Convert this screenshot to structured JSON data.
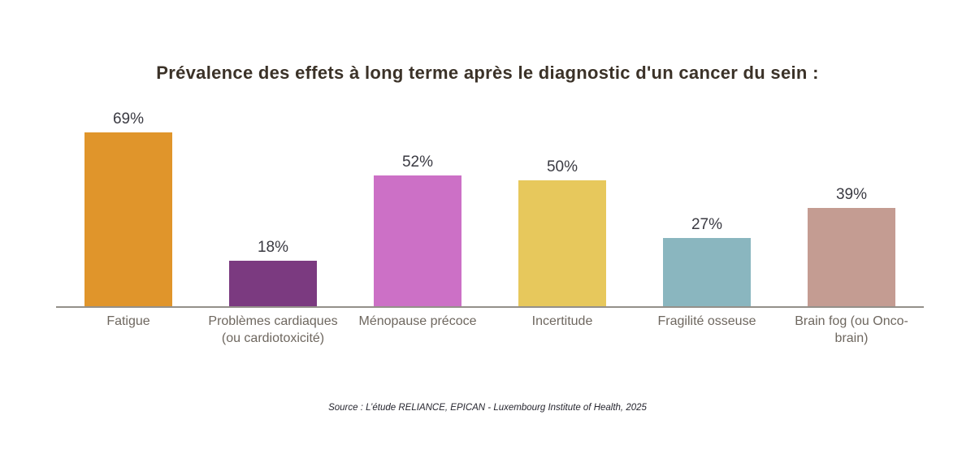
{
  "chart_data": {
    "type": "bar",
    "title": "Prévalence des effets à long terme après le diagnostic d'un cancer du sein :",
    "categories": [
      "Fatigue",
      "Problèmes cardiaques (ou cardiotoxicité)",
      "Ménopause précoce",
      "Incertitude",
      "Fragilité osseuse",
      "Brain fog (ou Onco-brain)"
    ],
    "values": [
      69,
      18,
      52,
      50,
      27,
      39
    ],
    "unit": "%",
    "bars": [
      {
        "label": "Fatigue",
        "value": 69,
        "color": "#E0952B"
      },
      {
        "label": "Problèmes cardiaques (ou cardiotoxicité)",
        "value": 18,
        "color": "#7B3A80"
      },
      {
        "label": "Ménopause précoce",
        "value": 52,
        "color": "#CC70C6"
      },
      {
        "label": "Incertitude",
        "value": 50,
        "color": "#E7C85C"
      },
      {
        "label": "Fragilité osseuse",
        "value": 27,
        "color": "#8AB6BF"
      },
      {
        "label": "Brain fog (ou Onco-brain)",
        "value": 39,
        "color": "#C49C92"
      }
    ],
    "xlabel": "",
    "ylabel": "",
    "ylim": [
      0,
      75
    ],
    "grid": false,
    "legend": false,
    "value_labels_position": "above-bars",
    "axis_line_color": "#94908A"
  },
  "source": "Source : L’étude RELIANCE, EPICAN - Luxembourg Institute of Health, 2025",
  "colors": {
    "background": "#FFFFFF",
    "title_text": "#3B3228",
    "value_label_text": "#3A3A42",
    "category_label_text": "#6E675F",
    "source_text": "#26262F",
    "axis_line": "#94908A"
  }
}
